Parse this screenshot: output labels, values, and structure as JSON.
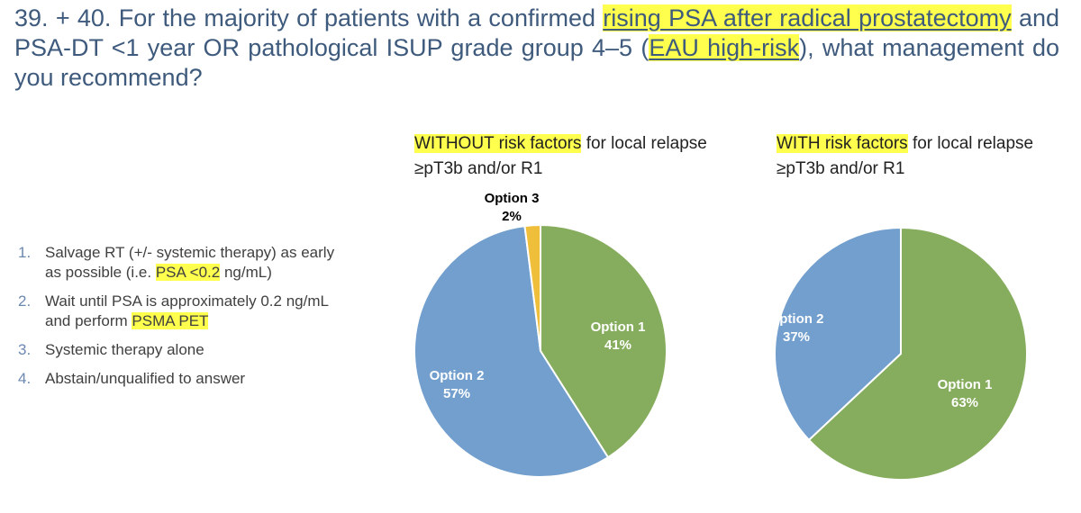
{
  "question": {
    "prefix": "39. + 40. For the majority of patients with a confirmed ",
    "highlight1": "rising PSA after radical prostatectomy",
    "mid": " and PSA-DT <1 year OR pathological ISUP grade group 4–5 (",
    "highlight2": "EAU high-risk",
    "suffix": "), what management do you recommend?"
  },
  "options": [
    {
      "num": "1.",
      "parts": [
        "Salvage RT (+/- systemic therapy) as early as possible (i.e. ",
        "PSA <0.2",
        " ng/mL)"
      ]
    },
    {
      "num": "2.",
      "parts": [
        "Wait until PSA is approximately 0.2 ng/mL and perform ",
        "PSMA PET",
        ""
      ]
    },
    {
      "num": "3.",
      "parts": [
        "Systemic therapy alone",
        "",
        ""
      ]
    },
    {
      "num": "4.",
      "parts": [
        "Abstain/unqualified to answer",
        "",
        ""
      ]
    }
  ],
  "colors": {
    "option1": "#86ad5d",
    "option2": "#729fcd",
    "option3": "#efbf3c",
    "highlight": "#ffff4d",
    "question_text": "#3e5a7c"
  },
  "chart_data": [
    {
      "type": "pie",
      "title_highlight": "WITHOUT risk factors",
      "title_rest": " for local relapse ≥pT3b and/or R1",
      "series": [
        {
          "name": "Option 1",
          "value": 41,
          "label": "41%",
          "color": "#86ad5d"
        },
        {
          "name": "Option 2",
          "value": 57,
          "label": "57%",
          "color": "#729fcd"
        },
        {
          "name": "Option 3",
          "value": 2,
          "label": "2%",
          "color": "#efbf3c"
        }
      ]
    },
    {
      "type": "pie",
      "title_highlight": "WITH risk factors",
      "title_rest": " for local relapse ≥pT3b and/or R1",
      "series": [
        {
          "name": "Option 1",
          "value": 63,
          "label": "63%",
          "color": "#86ad5d"
        },
        {
          "name": "Option 2",
          "value": 37,
          "label": "37%",
          "color": "#729fcd"
        }
      ]
    }
  ]
}
